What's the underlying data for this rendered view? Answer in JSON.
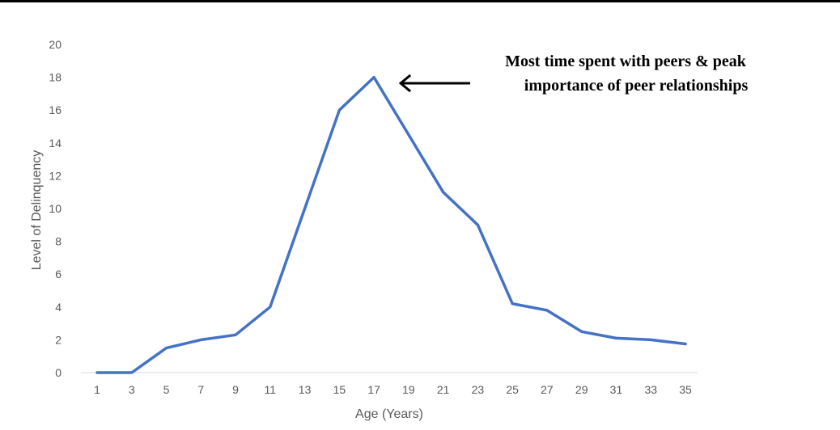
{
  "chart_data": {
    "type": "line",
    "title": "",
    "xlabel": "Age (Years)",
    "ylabel": "Level of Delinquency",
    "x": [
      1,
      3,
      5,
      7,
      9,
      11,
      13,
      15,
      17,
      19,
      21,
      23,
      25,
      27,
      29,
      31,
      33,
      35
    ],
    "xtick_labels": [
      "1",
      "3",
      "5",
      "7",
      "9",
      "11",
      "13",
      "15",
      "17",
      "19",
      "21",
      "23",
      "25",
      "27",
      "29",
      "31",
      "33",
      "35"
    ],
    "ytick_labels": [
      "0",
      "2",
      "4",
      "6",
      "8",
      "10",
      "12",
      "14",
      "16",
      "18",
      "20"
    ],
    "ylim": [
      0,
      20
    ],
    "series": [
      {
        "values": [
          0,
          0,
          1.5,
          2.0,
          2.3,
          4.0,
          10.0,
          16.0,
          18.0,
          14.5,
          11.0,
          9.0,
          4.2,
          3.8,
          2.5,
          2.1,
          2.0,
          1.75
        ]
      }
    ],
    "line_color": "#4472C4",
    "grid": false,
    "annotation": {
      "lines": [
        "Most time spent with peers & peak",
        "importance of peer relationships"
      ],
      "points_to_x": 17
    }
  }
}
